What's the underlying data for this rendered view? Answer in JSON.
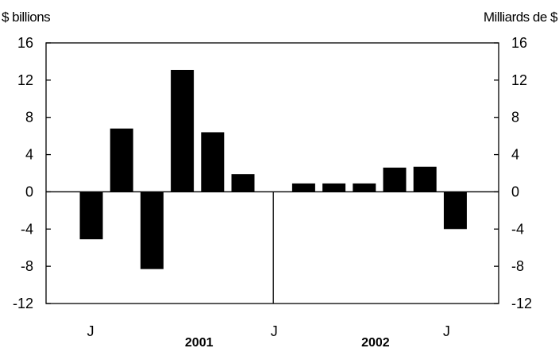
{
  "chart_data": {
    "type": "bar",
    "y_unit_left": "$ billions",
    "y_unit_right": "Milliards de $",
    "ylim": [
      -12,
      16
    ],
    "yticks": [
      "16",
      "12",
      "8",
      "4",
      "0",
      "-4",
      "-8",
      "-12"
    ],
    "ytick_values": [
      16,
      12,
      8,
      4,
      0,
      -4,
      -8,
      -12
    ],
    "grid": false,
    "legend": "none",
    "months": [
      "Jul 2001",
      "Aug 2001",
      "Sep 2001",
      "Oct 2001",
      "Nov 2001",
      "Dec 2001",
      "Jan 2002",
      "Feb 2002",
      "Mar 2002",
      "Apr 2002",
      "May 2002",
      "Jun 2002",
      "Jul 2002"
    ],
    "values": [
      -5.1,
      6.8,
      -8.3,
      13.1,
      6.4,
      1.9,
      null,
      0.9,
      0.9,
      0.9,
      2.6,
      2.7,
      -4.0
    ],
    "month_labels": [
      "J",
      "J",
      "J"
    ],
    "year_labels": [
      "2001",
      "2002"
    ],
    "colors": {
      "bar": "#000000",
      "axis": "#000000",
      "background": "#ffffff"
    }
  }
}
